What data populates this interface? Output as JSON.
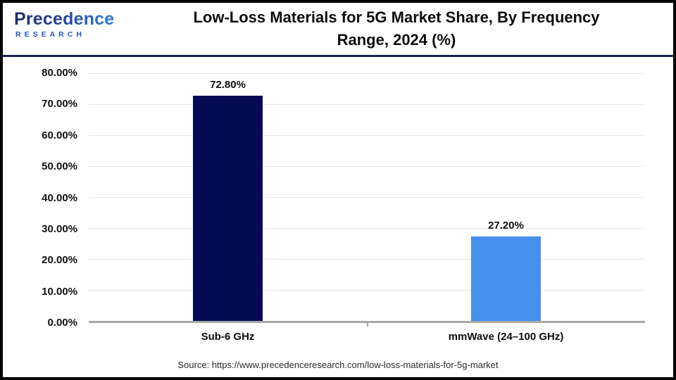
{
  "header": {
    "logo": {
      "name": "Precedence",
      "subtitle": "RESEARCH"
    },
    "title_line1": "Low-Loss Materials for 5G Market Share, By Frequency",
    "title_line2": "Range, 2024 (%)"
  },
  "chart_data": {
    "type": "bar",
    "title": "Low-Loss Materials for 5G Market Share, By Frequency Range, 2024 (%)",
    "categories": [
      "Sub-6 GHz",
      "mmWave (24–100 GHz)"
    ],
    "values": [
      72.8,
      27.2
    ],
    "value_labels": [
      "72.80%",
      "27.20%"
    ],
    "bar_colors": [
      "#040a54",
      "#4590eb"
    ],
    "xlabel": "",
    "ylabel": "",
    "ylim": [
      0,
      80
    ],
    "y_ticks": [
      "80.00%",
      "70.00%",
      "60.00%",
      "50.00%",
      "40.00%",
      "30.00%",
      "20.00%",
      "10.00%",
      "0.00%"
    ],
    "grid": true,
    "legend": "none"
  },
  "footer": {
    "source": "Source: https://www.precedenceresearch.com/low-loss-materials-for-5g-market"
  },
  "colors": {
    "bar_sub6": "#040a54",
    "bar_mmwave": "#4590eb",
    "header_rule": "#1b2150",
    "gridline": "#e7e7e7",
    "axis_line": "#a8a8a8",
    "brand_navy": "#1e2a6b",
    "brand_blue": "#2e7cd9"
  }
}
